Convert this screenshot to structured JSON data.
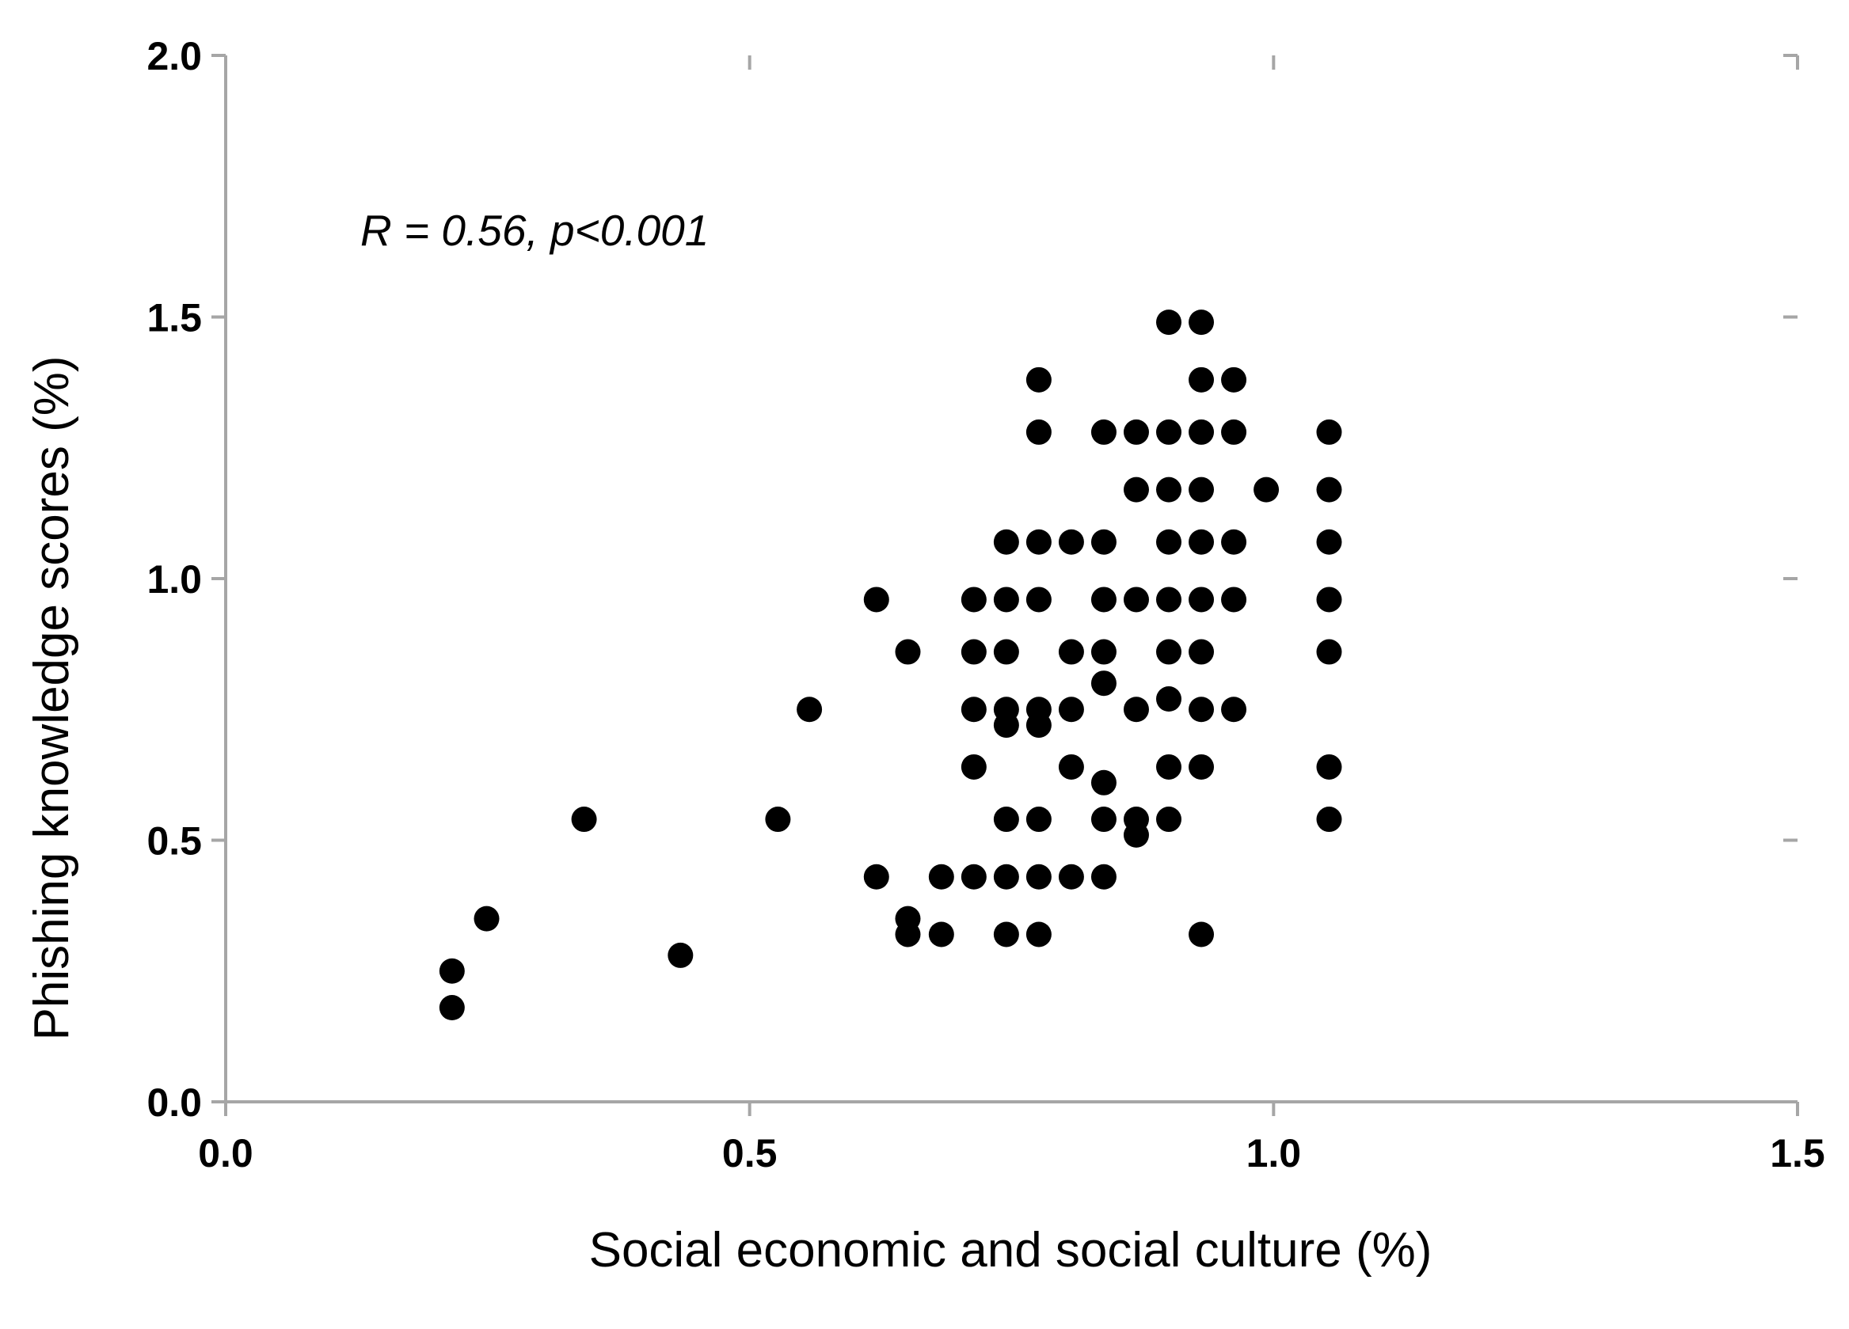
{
  "chart_data": {
    "type": "scatter",
    "xlabel": "Social economic and social culture (%)",
    "ylabel": "Phishing knowledge scores (%)",
    "annotation": "R = 0.56, p<0.001",
    "xlim": [
      0.0,
      1.5
    ],
    "ylim": [
      0.0,
      2.0
    ],
    "x_ticks": [
      0.0,
      0.5,
      1.0,
      1.5
    ],
    "y_ticks": [
      0.0,
      0.5,
      1.0,
      1.5,
      2.0
    ],
    "x_tick_labels": [
      "0.0",
      "0.5",
      "1.0",
      "1.5"
    ],
    "y_tick_labels": [
      "0.0",
      "0.5",
      "1.0",
      "1.5",
      "2.0"
    ],
    "grid": false,
    "marker_color": "#000000",
    "axis_color": "#a6a6a6",
    "points": [
      {
        "x": 0.216,
        "y": 0.18
      },
      {
        "x": 0.216,
        "y": 0.25
      },
      {
        "x": 0.249,
        "y": 0.35
      },
      {
        "x": 0.342,
        "y": 0.54
      },
      {
        "x": 0.434,
        "y": 0.28
      },
      {
        "x": 0.527,
        "y": 0.54
      },
      {
        "x": 0.557,
        "y": 0.75
      },
      {
        "x": 0.621,
        "y": 0.96
      },
      {
        "x": 0.621,
        "y": 0.43
      },
      {
        "x": 0.651,
        "y": 0.86
      },
      {
        "x": 0.651,
        "y": 0.35
      },
      {
        "x": 0.651,
        "y": 0.32
      },
      {
        "x": 0.683,
        "y": 0.43
      },
      {
        "x": 0.683,
        "y": 0.32
      },
      {
        "x": 0.714,
        "y": 0.96
      },
      {
        "x": 0.714,
        "y": 0.86
      },
      {
        "x": 0.714,
        "y": 0.75
      },
      {
        "x": 0.714,
        "y": 0.64
      },
      {
        "x": 0.714,
        "y": 0.43
      },
      {
        "x": 0.745,
        "y": 1.07
      },
      {
        "x": 0.745,
        "y": 0.96
      },
      {
        "x": 0.745,
        "y": 0.86
      },
      {
        "x": 0.745,
        "y": 0.75
      },
      {
        "x": 0.745,
        "y": 0.72
      },
      {
        "x": 0.745,
        "y": 0.54
      },
      {
        "x": 0.745,
        "y": 0.43
      },
      {
        "x": 0.745,
        "y": 0.32
      },
      {
        "x": 0.776,
        "y": 1.38
      },
      {
        "x": 0.776,
        "y": 1.28
      },
      {
        "x": 0.776,
        "y": 1.07
      },
      {
        "x": 0.776,
        "y": 0.96
      },
      {
        "x": 0.776,
        "y": 0.75
      },
      {
        "x": 0.776,
        "y": 0.72
      },
      {
        "x": 0.776,
        "y": 0.54
      },
      {
        "x": 0.776,
        "y": 0.43
      },
      {
        "x": 0.776,
        "y": 0.32
      },
      {
        "x": 0.807,
        "y": 1.07
      },
      {
        "x": 0.807,
        "y": 0.86
      },
      {
        "x": 0.807,
        "y": 0.75
      },
      {
        "x": 0.807,
        "y": 0.64
      },
      {
        "x": 0.807,
        "y": 0.43
      },
      {
        "x": 0.838,
        "y": 1.28
      },
      {
        "x": 0.838,
        "y": 1.07
      },
      {
        "x": 0.838,
        "y": 0.96
      },
      {
        "x": 0.838,
        "y": 0.86
      },
      {
        "x": 0.838,
        "y": 0.8
      },
      {
        "x": 0.838,
        "y": 0.61
      },
      {
        "x": 0.838,
        "y": 0.54
      },
      {
        "x": 0.838,
        "y": 0.43
      },
      {
        "x": 0.869,
        "y": 1.28
      },
      {
        "x": 0.869,
        "y": 1.17
      },
      {
        "x": 0.869,
        "y": 0.96
      },
      {
        "x": 0.869,
        "y": 0.75
      },
      {
        "x": 0.869,
        "y": 0.54
      },
      {
        "x": 0.869,
        "y": 0.51
      },
      {
        "x": 0.9,
        "y": 1.49
      },
      {
        "x": 0.9,
        "y": 1.28
      },
      {
        "x": 0.9,
        "y": 1.17
      },
      {
        "x": 0.9,
        "y": 1.07
      },
      {
        "x": 0.9,
        "y": 0.96
      },
      {
        "x": 0.9,
        "y": 0.86
      },
      {
        "x": 0.9,
        "y": 0.77
      },
      {
        "x": 0.9,
        "y": 0.64
      },
      {
        "x": 0.9,
        "y": 0.54
      },
      {
        "x": 0.931,
        "y": 1.49
      },
      {
        "x": 0.931,
        "y": 1.38
      },
      {
        "x": 0.931,
        "y": 1.28
      },
      {
        "x": 0.931,
        "y": 1.17
      },
      {
        "x": 0.931,
        "y": 1.07
      },
      {
        "x": 0.931,
        "y": 0.96
      },
      {
        "x": 0.931,
        "y": 0.86
      },
      {
        "x": 0.931,
        "y": 0.75
      },
      {
        "x": 0.931,
        "y": 0.64
      },
      {
        "x": 0.931,
        "y": 0.32
      },
      {
        "x": 0.962,
        "y": 1.38
      },
      {
        "x": 0.962,
        "y": 1.28
      },
      {
        "x": 0.962,
        "y": 1.07
      },
      {
        "x": 0.962,
        "y": 0.96
      },
      {
        "x": 0.962,
        "y": 0.75
      },
      {
        "x": 0.993,
        "y": 1.17
      },
      {
        "x": 1.053,
        "y": 1.28
      },
      {
        "x": 1.053,
        "y": 1.17
      },
      {
        "x": 1.053,
        "y": 1.07
      },
      {
        "x": 1.053,
        "y": 0.96
      },
      {
        "x": 1.053,
        "y": 0.86
      },
      {
        "x": 1.053,
        "y": 0.64
      },
      {
        "x": 1.053,
        "y": 0.54
      }
    ]
  }
}
